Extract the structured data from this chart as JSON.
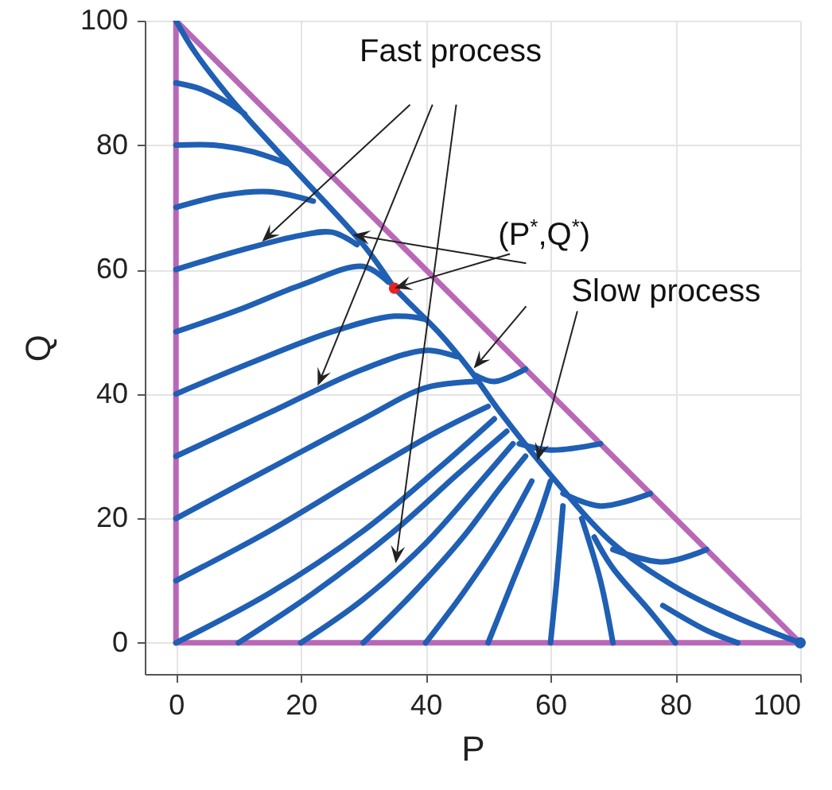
{
  "chart_data": {
    "type": "line",
    "xlabel": "P",
    "ylabel": "Q",
    "xlim": [
      -5,
      100
    ],
    "ylim": [
      -5,
      100
    ],
    "xticks": [
      0,
      20,
      40,
      60,
      80,
      100
    ],
    "yticks": [
      0,
      20,
      40,
      60,
      80,
      100
    ],
    "grid": true,
    "line_style": "solid",
    "annotations": [
      {
        "text": "Fast process",
        "x": 13.8,
        "y": 64.5
      },
      {
        "text": "(P$^{*}$,Q$^{*}$)",
        "x": 35,
        "y": 57
      },
      {
        "text": "Slow process",
        "x": 57.9,
        "y": 29.3
      }
    ],
    "series": [
      {
        "color": "#b968b8",
        "x": [
          0,
          0
        ],
        "values": [
          0,
          100
        ]
      },
      {
        "color": "#b968b8",
        "x": [
          0,
          100
        ],
        "values": [
          100,
          0
        ]
      },
      {
        "color": "#b968b8",
        "x": [
          0,
          100
        ],
        "values": [
          0,
          0
        ]
      },
      {
        "color": "#1f5fb4",
        "x": [
          0,
          3,
          10,
          20,
          30,
          35
        ],
        "values": [
          100,
          95,
          86,
          75,
          64,
          57
        ]
      },
      {
        "color": "#1f5fb4",
        "x": [
          100,
          90,
          80,
          70,
          60,
          52,
          47,
          42,
          38,
          35
        ],
        "values": [
          0,
          4,
          9,
          16,
          27,
          37,
          44,
          50,
          54,
          57
        ]
      },
      {
        "color": "#1f5fb4",
        "x": [
          0,
          4,
          8,
          11
        ],
        "values": [
          90,
          89,
          87,
          85
        ]
      },
      {
        "color": "#1f5fb4",
        "x": [
          0,
          6,
          12,
          18
        ],
        "values": [
          80,
          80,
          79,
          77
        ]
      },
      {
        "color": "#1f5fb4",
        "x": [
          0,
          8,
          15,
          22
        ],
        "values": [
          70,
          72,
          72.5,
          71
        ]
      },
      {
        "color": "#1f5fb4",
        "x": [
          0,
          10,
          20,
          25,
          29
        ],
        "values": [
          60,
          63,
          65.5,
          66,
          64
        ]
      },
      {
        "color": "#1f5fb4",
        "x": [
          0,
          10,
          20,
          30,
          34
        ],
        "values": [
          50,
          53.5,
          57.5,
          60.5,
          58
        ]
      },
      {
        "color": "#1f5fb4",
        "x": [
          0,
          12,
          25,
          35,
          40
        ],
        "values": [
          40,
          45,
          50,
          52.5,
          52
        ]
      },
      {
        "color": "#1f5fb4",
        "x": [
          0,
          15,
          30,
          40,
          45
        ],
        "values": [
          30,
          37,
          44,
          47,
          46
        ]
      },
      {
        "color": "#1f5fb4",
        "x": [
          0,
          15,
          30,
          40,
          48
        ],
        "values": [
          20,
          28,
          36,
          41,
          42
        ]
      },
      {
        "color": "#1f5fb4",
        "x": [
          0,
          15,
          30,
          42,
          50
        ],
        "values": [
          10,
          18,
          27,
          34,
          38
        ]
      },
      {
        "color": "#1f5fb4",
        "x": [
          0,
          15,
          30,
          42,
          51
        ],
        "values": [
          0,
          8,
          18,
          28,
          36
        ]
      },
      {
        "color": "#1f5fb4",
        "x": [
          10,
          22,
          35,
          45,
          53
        ],
        "values": [
          0,
          8,
          18,
          27,
          34
        ]
      },
      {
        "color": "#1f5fb4",
        "x": [
          20,
          30,
          40,
          48,
          54
        ],
        "values": [
          0,
          7,
          16,
          25,
          32
        ]
      },
      {
        "color": "#1f5fb4",
        "x": [
          30,
          38,
          46,
          52,
          56
        ],
        "values": [
          0,
          8,
          17,
          25,
          30
        ]
      },
      {
        "color": "#1f5fb4",
        "x": [
          40,
          46,
          52,
          57
        ],
        "values": [
          0,
          8,
          17,
          26
        ]
      },
      {
        "color": "#1f5fb4",
        "x": [
          50,
          54,
          58,
          60
        ],
        "values": [
          0,
          10,
          20,
          26
        ]
      },
      {
        "color": "#1f5fb4",
        "x": [
          60,
          61,
          62
        ],
        "values": [
          0,
          10,
          22
        ]
      },
      {
        "color": "#1f5fb4",
        "x": [
          70,
          68,
          65
        ],
        "values": [
          0,
          10,
          20
        ]
      },
      {
        "color": "#1f5fb4",
        "x": [
          80,
          76,
          70,
          67
        ],
        "values": [
          0,
          5,
          12,
          17
        ]
      },
      {
        "color": "#1f5fb4",
        "x": [
          90,
          85,
          78
        ],
        "values": [
          0,
          2,
          6
        ]
      },
      {
        "color": "#1f5fb4",
        "x": [
          85,
          78,
          70
        ],
        "values": [
          15,
          13,
          15
        ]
      },
      {
        "color": "#1f5fb4",
        "x": [
          76,
          68,
          62
        ],
        "values": [
          24,
          22,
          24
        ]
      },
      {
        "color": "#1f5fb4",
        "x": [
          68,
          60,
          55
        ],
        "values": [
          32,
          31,
          32
        ]
      },
      {
        "color": "#1f5fb4",
        "x": [
          56,
          51,
          48
        ],
        "values": [
          44,
          42,
          43
        ]
      },
      {
        "type": "scatter",
        "color": "#1f5fb4",
        "x": [
          100
        ],
        "values": [
          0
        ]
      },
      {
        "type": "scatter",
        "color": "#e8231f",
        "x": [
          35
        ],
        "values": [
          57
        ]
      }
    ]
  }
}
